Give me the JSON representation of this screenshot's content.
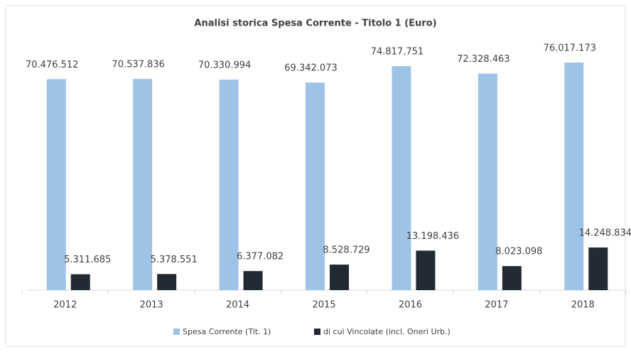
{
  "chart_data": {
    "type": "bar",
    "title": "Analisi storica Spesa Corrente  - Titolo 1 (Euro)",
    "categories": [
      "2012",
      "2013",
      "2014",
      "2015",
      "2016",
      "2017",
      "2018"
    ],
    "series": [
      {
        "name": "Spesa Corrente (Tit. 1)",
        "color": "#9dc3e6",
        "values": [
          70476512,
          70537836,
          70330994,
          69342073,
          74817751,
          72328463,
          76017173
        ],
        "value_labels": [
          "70.476.512",
          "70.537.836",
          "70.330.994",
          "69.342.073",
          "74.817.751",
          "72.328.463",
          "76.017.173"
        ]
      },
      {
        "name": "di cui Vincolate (incl. Oneri Urb.)",
        "color": "#222a35",
        "values": [
          5311685,
          5378551,
          6377082,
          8528729,
          13198436,
          8023098,
          14248834
        ],
        "value_labels": [
          "5.311.685",
          "5.378.551",
          "6.377.082",
          "8.528.729",
          "13.198.436",
          "8.023.098",
          "14.248.834"
        ]
      }
    ],
    "legend": "bottom"
  }
}
